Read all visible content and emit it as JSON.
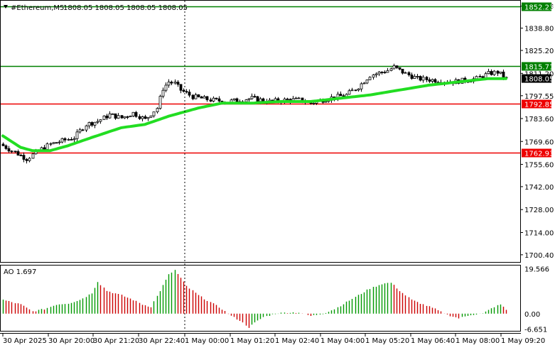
{
  "header": {
    "symbol": "#Ethereum,M5",
    "ohlc": "1808.05 1808.05 1808.05 1808.05"
  },
  "indicator": {
    "label": "AO 1.697",
    "y_ticks": [
      "19.566",
      "0.00",
      "-6.651"
    ]
  },
  "colors": {
    "ma": "#22dd22",
    "level_green": "#008000",
    "level_red": "#ee0000",
    "ao_up": "#009900",
    "ao_down": "#cc0000",
    "price_tag": "#000000"
  },
  "chart_data": [
    {
      "type": "candlestick",
      "title": "#Ethereum,M5",
      "ylim": [
        1696,
        1856
      ],
      "y_ticks": [
        "1852.23",
        "1838.80",
        "1825.20",
        "1811.20",
        "1797.55",
        "1783.60",
        "1769.60",
        "1755.60",
        "1742.00",
        "1728.00",
        "1714.00",
        "1700.40"
      ],
      "x_ticks": [
        "30 Apr 2025",
        "30 Apr 20:00",
        "30 Apr 21:20",
        "30 Apr 22:40",
        "1 May 00:00",
        "1 May 01:20",
        "1 May 02:40",
        "1 May 04:00",
        "1 May 05:20",
        "1 May 06:40",
        "1 May 08:00",
        "1 May 09:20"
      ],
      "levels": [
        {
          "value": 1852.23,
          "label": "1852.23",
          "color": "green"
        },
        {
          "value": 1815.71,
          "label": "1815.71",
          "color": "green"
        },
        {
          "value": 1792.85,
          "label": "1792.85",
          "color": "red"
        },
        {
          "value": 1762.93,
          "label": "1762.93",
          "color": "red"
        }
      ],
      "current_price": {
        "value": 1808.05,
        "label": "1808.05"
      },
      "close_anchors": [
        [
          0,
          1767
        ],
        [
          4,
          1763
        ],
        [
          8,
          1759
        ],
        [
          12,
          1764
        ],
        [
          16,
          1768
        ],
        [
          20,
          1770
        ],
        [
          24,
          1772
        ],
        [
          28,
          1780
        ],
        [
          32,
          1782
        ],
        [
          36,
          1786
        ],
        [
          40,
          1784
        ],
        [
          44,
          1787
        ],
        [
          48,
          1783
        ],
        [
          52,
          1790
        ],
        [
          54,
          1802
        ],
        [
          56,
          1806
        ],
        [
          58,
          1805
        ],
        [
          60,
          1801
        ],
        [
          64,
          1797
        ],
        [
          70,
          1795
        ],
        [
          76,
          1794
        ],
        [
          84,
          1796
        ],
        [
          90,
          1794
        ],
        [
          96,
          1795
        ],
        [
          100,
          1795
        ],
        [
          104,
          1793
        ],
        [
          110,
          1796
        ],
        [
          116,
          1798
        ],
        [
          120,
          1803
        ],
        [
          124,
          1810
        ],
        [
          130,
          1813
        ],
        [
          132,
          1815
        ],
        [
          136,
          1811
        ],
        [
          140,
          1808
        ],
        [
          146,
          1807
        ],
        [
          152,
          1806
        ],
        [
          160,
          1808
        ],
        [
          164,
          1811
        ],
        [
          167,
          1812
        ],
        [
          170,
          1808.05
        ]
      ],
      "ma_anchors": [
        [
          0,
          1773
        ],
        [
          6,
          1766
        ],
        [
          10,
          1764
        ],
        [
          16,
          1764
        ],
        [
          22,
          1767
        ],
        [
          30,
          1772
        ],
        [
          40,
          1778
        ],
        [
          48,
          1780
        ],
        [
          56,
          1785
        ],
        [
          66,
          1790
        ],
        [
          74,
          1793
        ],
        [
          84,
          1793
        ],
        [
          94,
          1794
        ],
        [
          104,
          1794
        ],
        [
          114,
          1796
        ],
        [
          124,
          1798
        ],
        [
          134,
          1801
        ],
        [
          144,
          1804
        ],
        [
          154,
          1806
        ],
        [
          164,
          1808
        ],
        [
          170,
          1808
        ]
      ],
      "candle_count": 171
    },
    {
      "type": "bar",
      "title": "AO 1.697",
      "ylim": [
        -7.5,
        21
      ],
      "ao_anchors": [
        [
          0,
          6
        ],
        [
          6,
          4
        ],
        [
          10,
          1
        ],
        [
          14,
          2
        ],
        [
          18,
          4
        ],
        [
          22,
          4.5
        ],
        [
          26,
          6
        ],
        [
          30,
          9
        ],
        [
          32,
          14
        ],
        [
          35,
          10
        ],
        [
          40,
          8
        ],
        [
          44,
          6
        ],
        [
          47,
          4
        ],
        [
          50,
          3
        ],
        [
          53,
          10
        ],
        [
          56,
          17
        ],
        [
          58,
          19
        ],
        [
          62,
          12
        ],
        [
          66,
          8
        ],
        [
          70,
          5
        ],
        [
          74,
          2
        ],
        [
          77,
          -1
        ],
        [
          80,
          -3
        ],
        [
          83,
          -6
        ],
        [
          85,
          -4
        ],
        [
          88,
          -1.5
        ],
        [
          92,
          0
        ],
        [
          96,
          0.5
        ],
        [
          100,
          0.5
        ],
        [
          104,
          -1
        ],
        [
          108,
          0
        ],
        [
          112,
          2
        ],
        [
          116,
          5
        ],
        [
          120,
          8
        ],
        [
          124,
          11
        ],
        [
          128,
          13
        ],
        [
          131,
          13.5
        ],
        [
          134,
          10
        ],
        [
          138,
          6
        ],
        [
          142,
          4
        ],
        [
          146,
          2
        ],
        [
          150,
          -0.5
        ],
        [
          154,
          -2
        ],
        [
          158,
          -0.5
        ],
        [
          162,
          0
        ],
        [
          166,
          3
        ],
        [
          168,
          4
        ],
        [
          170,
          1.7
        ]
      ]
    }
  ]
}
